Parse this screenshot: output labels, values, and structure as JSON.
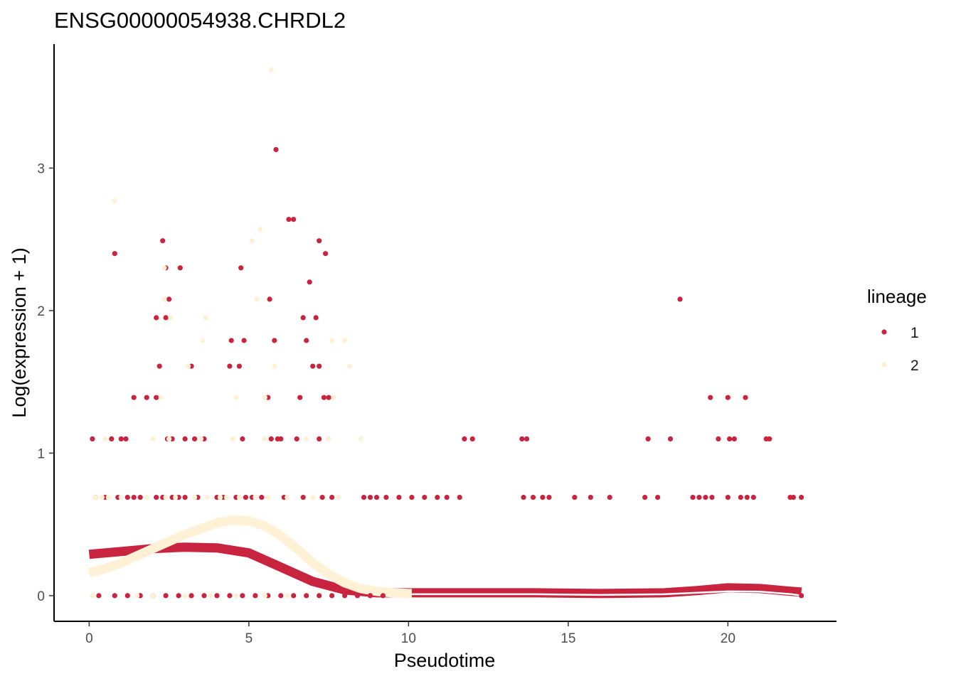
{
  "chart_data": {
    "type": "scatter",
    "title": "ENSG00000054938.CHRDL2",
    "xlabel": "Pseudotime",
    "ylabel": "Log(expression + 1)",
    "xlim": [
      -1.1,
      23.4
    ],
    "ylim": [
      -0.18,
      3.87
    ],
    "x_ticks": [
      0,
      5,
      10,
      15,
      20
    ],
    "y_ticks": [
      0,
      1,
      2,
      3
    ],
    "grid": false,
    "legend": {
      "title": "lineage",
      "position": "right",
      "entries": [
        "1",
        "2"
      ]
    },
    "series": [
      {
        "name": "1",
        "color": "#C8243F",
        "points": [
          [
            0.1,
            1.1
          ],
          [
            0.8,
            2.4
          ],
          [
            0.7,
            1.1
          ],
          [
            1.0,
            1.1
          ],
          [
            1.15,
            1.1
          ],
          [
            0.2,
            0.69
          ],
          [
            0.5,
            0.69
          ],
          [
            0.9,
            0.69
          ],
          [
            1.2,
            0.69
          ],
          [
            1.4,
            0.69
          ],
          [
            1.6,
            0.69
          ],
          [
            1.4,
            1.39
          ],
          [
            1.8,
            1.39
          ],
          [
            2.1,
            1.39
          ],
          [
            2.1,
            1.95
          ],
          [
            2.2,
            1.61
          ],
          [
            2.3,
            2.49
          ],
          [
            2.4,
            1.95
          ],
          [
            2.5,
            2.08
          ],
          [
            2.4,
            2.3
          ],
          [
            2.45,
            1.1
          ],
          [
            2.1,
            0.69
          ],
          [
            2.3,
            0.69
          ],
          [
            2.6,
            0.69
          ],
          [
            2.8,
            0.69
          ],
          [
            3.0,
            0.69
          ],
          [
            2.85,
            2.3
          ],
          [
            2.6,
            1.1
          ],
          [
            3.2,
            1.61
          ],
          [
            3.0,
            1.1
          ],
          [
            3.3,
            1.1
          ],
          [
            3.4,
            0.69
          ],
          [
            3.6,
            1.1
          ],
          [
            4.0,
            0.69
          ],
          [
            4.2,
            0.69
          ],
          [
            4.4,
            1.61
          ],
          [
            4.45,
            1.79
          ],
          [
            4.6,
            0.69
          ],
          [
            4.7,
            1.61
          ],
          [
            4.75,
            2.3
          ],
          [
            4.85,
            1.79
          ],
          [
            4.8,
            1.1
          ],
          [
            4.9,
            0.69
          ],
          [
            5.1,
            0.69
          ],
          [
            5.4,
            0.69
          ],
          [
            5.6,
            1.39
          ],
          [
            5.65,
            2.08
          ],
          [
            5.8,
            1.79
          ],
          [
            5.7,
            1.1
          ],
          [
            5.85,
            3.13
          ],
          [
            5.9,
            1.1
          ],
          [
            6.0,
            1.1
          ],
          [
            6.1,
            0.69
          ],
          [
            6.25,
            2.64
          ],
          [
            6.4,
            2.64
          ],
          [
            6.5,
            1.1
          ],
          [
            6.6,
            1.39
          ],
          [
            6.7,
            1.95
          ],
          [
            6.8,
            1.79
          ],
          [
            6.9,
            2.2
          ],
          [
            7.0,
            1.61
          ],
          [
            7.1,
            1.95
          ],
          [
            7.2,
            2.49
          ],
          [
            7.2,
            1.61
          ],
          [
            7.3,
            0.69
          ],
          [
            7.4,
            2.4
          ],
          [
            7.35,
            1.39
          ],
          [
            7.5,
            1.39
          ],
          [
            7.2,
            1.1
          ],
          [
            7.6,
            0.69
          ],
          [
            6.7,
            0.69
          ],
          [
            8.6,
            0.69
          ],
          [
            8.8,
            0.69
          ],
          [
            9.0,
            0.69
          ],
          [
            9.3,
            0.69
          ],
          [
            9.7,
            0.69
          ],
          [
            10.1,
            0.69
          ],
          [
            10.5,
            0.69
          ],
          [
            10.9,
            0.69
          ],
          [
            11.2,
            0.69
          ],
          [
            11.6,
            0.69
          ],
          [
            11.75,
            1.1
          ],
          [
            12.0,
            1.1
          ],
          [
            13.55,
            1.1
          ],
          [
            13.7,
            1.1
          ],
          [
            13.6,
            0.69
          ],
          [
            13.9,
            0.69
          ],
          [
            14.2,
            0.69
          ],
          [
            14.4,
            0.69
          ],
          [
            15.2,
            0.69
          ],
          [
            15.7,
            0.69
          ],
          [
            16.3,
            0.69
          ],
          [
            17.4,
            0.69
          ],
          [
            17.5,
            1.1
          ],
          [
            17.8,
            0.69
          ],
          [
            18.2,
            1.1
          ],
          [
            18.5,
            2.08
          ],
          [
            18.9,
            0.69
          ],
          [
            19.1,
            0.69
          ],
          [
            19.3,
            0.69
          ],
          [
            19.5,
            0.69
          ],
          [
            19.45,
            1.39
          ],
          [
            19.7,
            1.1
          ],
          [
            20.0,
            1.39
          ],
          [
            20.05,
            1.1
          ],
          [
            20.2,
            1.1
          ],
          [
            20.0,
            0.69
          ],
          [
            20.4,
            0.69
          ],
          [
            20.55,
            1.39
          ],
          [
            20.6,
            0.69
          ],
          [
            20.8,
            0.69
          ],
          [
            21.2,
            1.1
          ],
          [
            21.3,
            1.1
          ],
          [
            21.95,
            0.69
          ],
          [
            22.05,
            0.69
          ],
          [
            22.3,
            0.69
          ],
          [
            22.3,
            0.0
          ],
          [
            0.3,
            0.0
          ],
          [
            0.8,
            0.0
          ],
          [
            1.2,
            0.0
          ],
          [
            1.6,
            0.0
          ],
          [
            2.0,
            0.0
          ],
          [
            2.4,
            0.0
          ],
          [
            2.8,
            0.0
          ],
          [
            3.2,
            0.0
          ],
          [
            3.6,
            0.0
          ],
          [
            4.0,
            0.0
          ],
          [
            4.4,
            0.0
          ],
          [
            4.8,
            0.0
          ],
          [
            5.2,
            0.0
          ],
          [
            5.6,
            0.0
          ],
          [
            6.0,
            0.0
          ],
          [
            6.4,
            0.0
          ],
          [
            6.8,
            0.0
          ],
          [
            7.2,
            0.0
          ],
          [
            7.6,
            0.0
          ],
          [
            8.0,
            0.0
          ],
          [
            8.4,
            0.0
          ],
          [
            8.8,
            0.0
          ],
          [
            9.2,
            0.0
          ]
        ],
        "smooth": [
          [
            0,
            0.29
          ],
          [
            1,
            0.31
          ],
          [
            2,
            0.33
          ],
          [
            3,
            0.34
          ],
          [
            4,
            0.335
          ],
          [
            5,
            0.3
          ],
          [
            6,
            0.2
          ],
          [
            7,
            0.1
          ],
          [
            8,
            0.04
          ],
          [
            9,
            0.02
          ],
          [
            10,
            0.02
          ],
          [
            12,
            0.02
          ],
          [
            14,
            0.02
          ],
          [
            16,
            0.015
          ],
          [
            18,
            0.02
          ],
          [
            19,
            0.035
          ],
          [
            20,
            0.055
          ],
          [
            21,
            0.05
          ],
          [
            22,
            0.03
          ],
          [
            22.3,
            0.025
          ]
        ]
      },
      {
        "name": "2",
        "color": "#FFF1D5",
        "points": [
          [
            0.8,
            2.77
          ],
          [
            0.2,
            0.69
          ],
          [
            0.4,
            0.69
          ],
          [
            0.6,
            0.69
          ],
          [
            0.5,
            1.1
          ],
          [
            1.0,
            0.69
          ],
          [
            1.8,
            0.69
          ],
          [
            2.0,
            1.1
          ],
          [
            2.25,
            1.39
          ],
          [
            2.35,
            2.3
          ],
          [
            2.35,
            2.08
          ],
          [
            2.55,
            1.95
          ],
          [
            2.4,
            0.69
          ],
          [
            2.7,
            0.69
          ],
          [
            2.5,
            1.1
          ],
          [
            3.1,
            1.61
          ],
          [
            3.3,
            0.69
          ],
          [
            3.55,
            1.79
          ],
          [
            3.65,
            1.95
          ],
          [
            3.5,
            1.1
          ],
          [
            3.7,
            0.69
          ],
          [
            4.1,
            0.69
          ],
          [
            4.3,
            0.69
          ],
          [
            4.6,
            1.39
          ],
          [
            4.5,
            1.1
          ],
          [
            4.7,
            0.69
          ],
          [
            5.1,
            2.49
          ],
          [
            5.25,
            2.08
          ],
          [
            5.2,
            0.69
          ],
          [
            5.35,
            2.57
          ],
          [
            5.5,
            1.39
          ],
          [
            5.7,
            3.69
          ],
          [
            5.8,
            1.61
          ],
          [
            5.6,
            0.69
          ],
          [
            5.5,
            1.1
          ],
          [
            6.2,
            0.69
          ],
          [
            6.8,
            1.1
          ],
          [
            7.0,
            0.69
          ],
          [
            7.6,
            1.79
          ],
          [
            7.65,
            1.39
          ],
          [
            7.5,
            1.1
          ],
          [
            7.8,
            0.69
          ],
          [
            8.0,
            1.79
          ],
          [
            8.15,
            1.61
          ],
          [
            8.5,
            1.1
          ],
          [
            1.5,
            0.0
          ],
          [
            2.0,
            0.0
          ],
          [
            3.0,
            0.0
          ],
          [
            3.8,
            0.0
          ],
          [
            4.6,
            0.0
          ],
          [
            5.5,
            0.0
          ],
          [
            6.2,
            0.0
          ],
          [
            0.1,
            0.0
          ]
        ],
        "smooth": [
          [
            0,
            0.16
          ],
          [
            0.5,
            0.19
          ],
          [
            1,
            0.23
          ],
          [
            1.5,
            0.28
          ],
          [
            2,
            0.33
          ],
          [
            2.5,
            0.38
          ],
          [
            3,
            0.43
          ],
          [
            3.5,
            0.47
          ],
          [
            4,
            0.51
          ],
          [
            4.5,
            0.53
          ],
          [
            5,
            0.525
          ],
          [
            5.5,
            0.49
          ],
          [
            6,
            0.42
          ],
          [
            6.5,
            0.33
          ],
          [
            7,
            0.23
          ],
          [
            7.5,
            0.15
          ],
          [
            8,
            0.09
          ],
          [
            8.5,
            0.05
          ],
          [
            9,
            0.03
          ],
          [
            9.5,
            0.02
          ],
          [
            10,
            0.015
          ],
          [
            10.1,
            0.015
          ]
        ],
        "smooth_thin": [
          [
            10.1,
            0.01
          ],
          [
            12,
            0.01
          ],
          [
            14,
            0.01
          ],
          [
            16,
            0.005
          ],
          [
            18,
            0.01
          ],
          [
            19,
            0.02
          ],
          [
            20,
            0.03
          ],
          [
            21,
            0.028
          ],
          [
            22,
            0.01
          ],
          [
            22.3,
            0.0
          ]
        ]
      }
    ]
  }
}
